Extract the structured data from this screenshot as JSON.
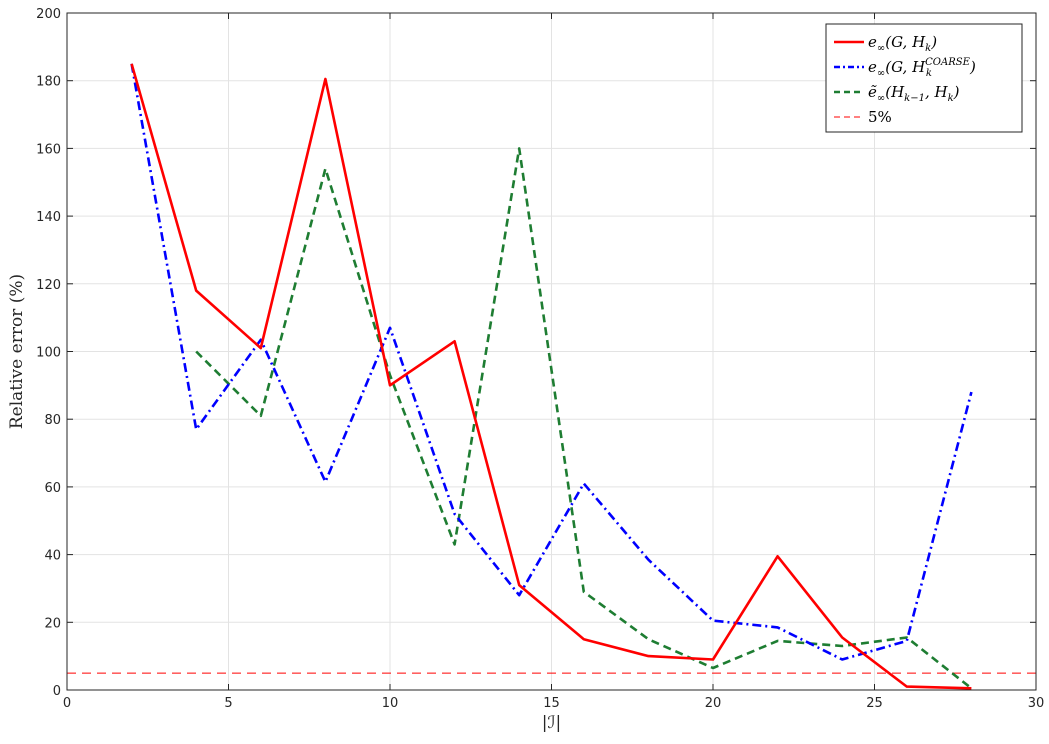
{
  "chart_data": {
    "type": "line",
    "xlabel": "|ℐ|",
    "ylabel": "Relative error (%)",
    "xlim": [
      0,
      30
    ],
    "ylim": [
      0,
      200
    ],
    "xticks": [
      0,
      5,
      10,
      15,
      20,
      25,
      30
    ],
    "yticks": [
      0,
      20,
      40,
      60,
      80,
      100,
      120,
      140,
      160,
      180,
      200
    ],
    "grid": true,
    "legend_position": "top-right",
    "series": [
      {
        "name": "e∞(G, H_k)",
        "legend_main": "e",
        "legend_sub": "∞",
        "legend_args": "(G, H",
        "legend_args_sub": "k",
        "legend_args_sup": "",
        "legend_tail": ")",
        "color": "#ff0000",
        "style": "solid",
        "x": [
          2,
          4,
          6,
          8,
          10,
          12,
          14,
          16,
          18,
          20,
          22,
          24,
          26,
          28
        ],
        "y": [
          185,
          118,
          101,
          180.5,
          90,
          103,
          31,
          15,
          10,
          9,
          39.5,
          15.5,
          1,
          0.5
        ]
      },
      {
        "name": "e∞(G, H_k^COARSE)",
        "legend_main": "e",
        "legend_sub": "∞",
        "legend_args": "(G, H",
        "legend_args_sub": "k",
        "legend_args_sup": "COARSE",
        "legend_tail": ")",
        "color": "#0000ff",
        "style": "dashdot",
        "x": [
          2,
          4,
          6,
          8,
          10,
          12,
          14,
          16,
          18,
          20,
          22,
          24,
          26,
          28
        ],
        "y": [
          185,
          77,
          103.5,
          61.5,
          107,
          52,
          28,
          61,
          38.5,
          20.5,
          18.5,
          9,
          14.5,
          88
        ]
      },
      {
        "name": "ẽ∞(H_{k-1}, H_k)",
        "legend_main": "ẽ",
        "legend_sub": "∞",
        "legend_args": "(H",
        "legend_args_sub": "k−1",
        "legend_args_sup": "",
        "legend_tail": ", H",
        "legend_tail_sub": "k",
        "legend_end": ")",
        "color": "#1e7d32",
        "style": "dashed",
        "x": [
          4,
          6,
          8,
          10,
          12,
          14,
          16,
          18,
          20,
          22,
          24,
          26,
          28
        ],
        "y": [
          100,
          81,
          154,
          93,
          43,
          160,
          29,
          15,
          6.5,
          14.5,
          13,
          15.5,
          0.5
        ]
      }
    ],
    "reference_line": {
      "name": "5%",
      "y": 5,
      "color": "#ff0000",
      "style": "dashed-thin"
    }
  }
}
